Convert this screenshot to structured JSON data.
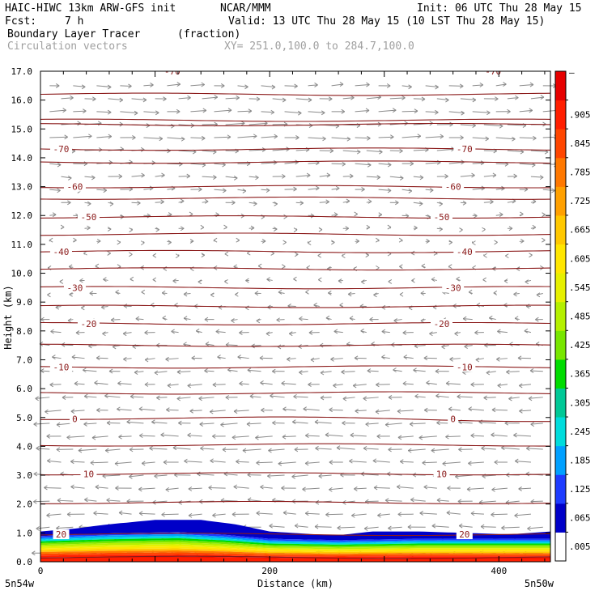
{
  "header": {
    "model": "HAIC-HIWC 13km ARW-GFS init",
    "org": "NCAR/MMM",
    "init": "Init: 06 UTC Thu 28 May 15",
    "fcst_label": "Fcst:",
    "fcst_value": "7 h",
    "valid": "Valid: 13 UTC Thu 28 May 15 (10 LST Thu 28 May 15)",
    "field": "Boundary Layer Tracer",
    "field_units": "(fraction)",
    "vectors": "Circulation vectors",
    "xy_range": "XY= 251.0,100.0 to 284.7,100.0"
  },
  "chart_data": {
    "type": "contour",
    "xlabel": "Distance (km)",
    "ylabel": "Height (km)",
    "xlim": [
      0,
      445
    ],
    "ylim": [
      0,
      17
    ],
    "x_ticks": [
      {
        "value": 0,
        "label": "0"
      },
      {
        "value": 200,
        "label": "200"
      },
      {
        "value": 400,
        "label": "400"
      }
    ],
    "x_endpoints": {
      "left": "5n54w",
      "right": "5n50w"
    },
    "y_ticks": [
      "0.0",
      "1.0",
      "2.0",
      "3.0",
      "4.0",
      "5.0",
      "6.0",
      "7.0",
      "8.0",
      "9.0",
      "10.0",
      "11.0",
      "12.0",
      "13.0",
      "14.0",
      "15.0",
      "16.0",
      "17.0"
    ],
    "colorbar": {
      "labels": [
        ".005",
        ".065",
        ".125",
        ".185",
        ".245",
        ".305",
        ".365",
        ".425",
        ".485",
        ".545",
        ".605",
        ".665",
        ".725",
        ".785",
        ".845",
        ".905"
      ],
      "top_label": "–",
      "colors": [
        "#ffffff",
        "#0000c8",
        "#1e3cff",
        "#00a0ff",
        "#00dcdc",
        "#00c896",
        "#00dc00",
        "#78e600",
        "#b4f000",
        "#e6f000",
        "#ffe600",
        "#ffc800",
        "#ffa000",
        "#ff7800",
        "#ff4600",
        "#ff1e00",
        "#e60000"
      ]
    },
    "tracer_top_profile": [
      [
        0,
        1.05
      ],
      [
        30,
        1.15
      ],
      [
        60,
        1.3
      ],
      [
        100,
        1.45
      ],
      [
        140,
        1.45
      ],
      [
        170,
        1.3
      ],
      [
        200,
        1.05
      ],
      [
        240,
        0.95
      ],
      [
        260,
        0.92
      ],
      [
        290,
        1.05
      ],
      [
        330,
        1.05
      ],
      [
        370,
        1.0
      ],
      [
        410,
        0.95
      ],
      [
        445,
        1.05
      ]
    ],
    "tracer_core_profile": [
      [
        0,
        0.95
      ],
      [
        60,
        1.05
      ],
      [
        120,
        1.1
      ],
      [
        160,
        1.0
      ],
      [
        200,
        0.85
      ],
      [
        260,
        0.8
      ],
      [
        330,
        0.85
      ],
      [
        445,
        0.85
      ]
    ],
    "contours": [
      {
        "label": "-70",
        "y": 14.3
      },
      {
        "label": "-60",
        "y": 13.0
      },
      {
        "label": "-50",
        "y": 11.95
      },
      {
        "label": "-40",
        "y": 10.75
      },
      {
        "label": "-30",
        "y": 9.5
      },
      {
        "label": "-20",
        "y": 8.25
      },
      {
        "label": "-10",
        "y": 6.75
      },
      {
        "label": "0",
        "y": 4.95
      },
      {
        "label": "10",
        "y": 3.05
      },
      {
        "label": "20",
        "y": 0.95
      }
    ],
    "contour_levels_unlabeled": [
      16.2,
      15.3,
      15.15,
      13.85,
      12.6,
      11.35,
      10.15,
      8.85,
      7.5,
      5.85,
      4.05,
      2.05,
      0.15
    ],
    "top_partial_labels": [
      "-70",
      "-70"
    ],
    "wind_profile": [
      [
        0.3,
        -1.0
      ],
      [
        1.0,
        -0.9
      ],
      [
        2.0,
        -0.8
      ],
      [
        3.0,
        -0.85
      ],
      [
        4.0,
        -0.9
      ],
      [
        5.0,
        -0.8
      ],
      [
        6.0,
        -0.7
      ],
      [
        7.0,
        -0.6
      ],
      [
        8.0,
        -0.45
      ],
      [
        9.0,
        -0.3
      ],
      [
        10.0,
        -0.15
      ],
      [
        11.0,
        0.1
      ],
      [
        12.0,
        0.25
      ],
      [
        13.0,
        0.6
      ],
      [
        14.0,
        0.8
      ],
      [
        15.0,
        1.0
      ],
      [
        16.0,
        0.75
      ],
      [
        17.0,
        0.6
      ]
    ]
  }
}
